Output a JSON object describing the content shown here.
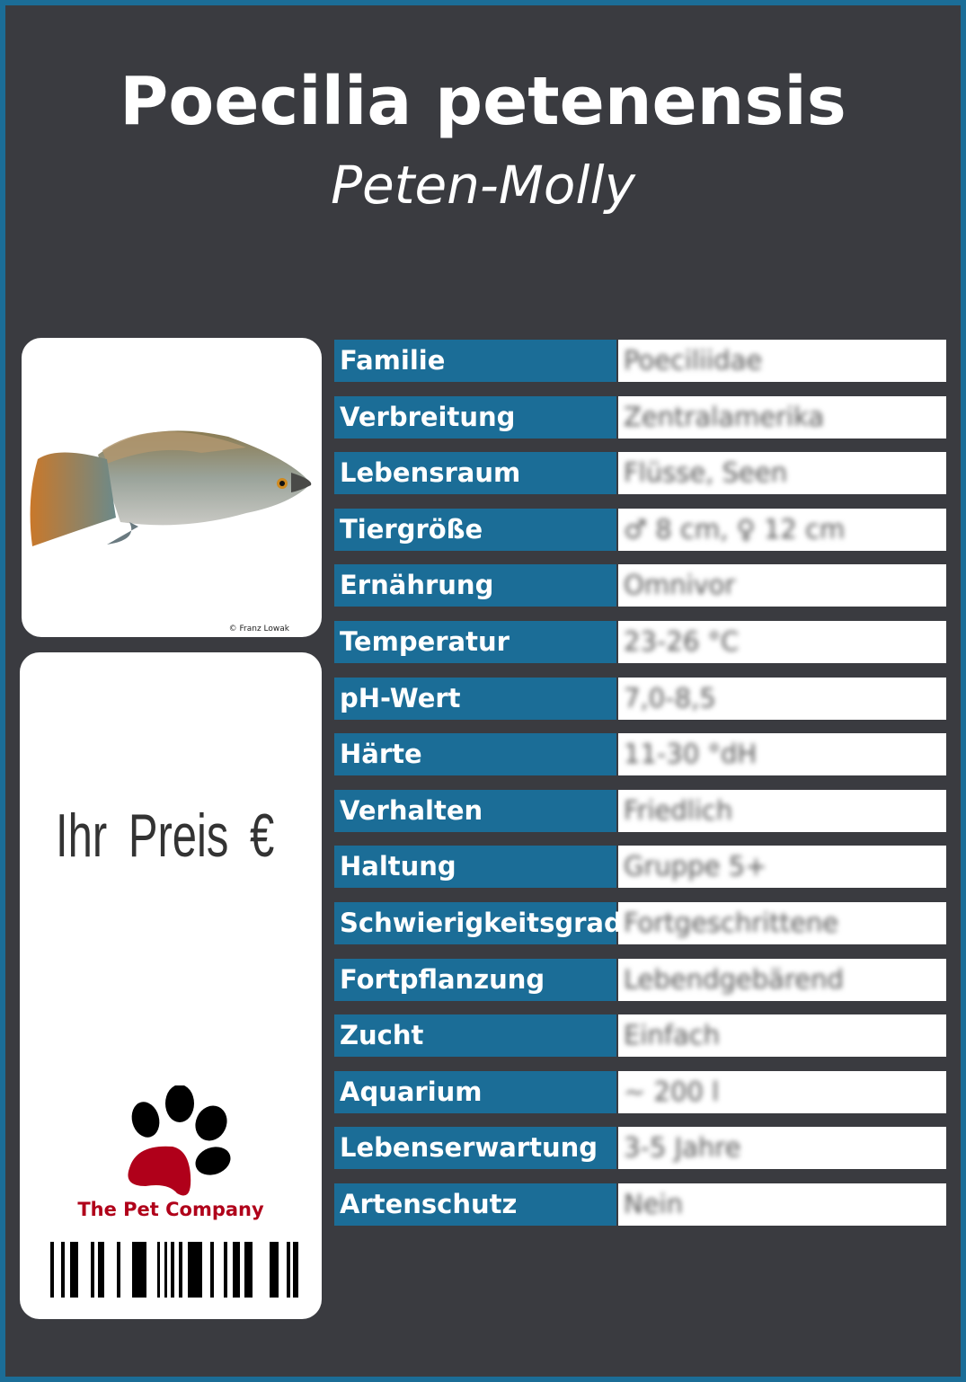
{
  "header": {
    "title": "Poecilia petenensis",
    "subtitle": "Peten-Molly"
  },
  "photo": {
    "credit": "© Franz Lowak",
    "alt": "fish-photo"
  },
  "price": {
    "label": "Ihr Preis €"
  },
  "brand": {
    "name": "The Pet Company",
    "logo": "paw-icon",
    "colors": {
      "paw": "#000000",
      "pad": "#b0001a"
    }
  },
  "colors": {
    "accent": "#1b6d97",
    "background": "#3a3b40"
  },
  "rows": [
    {
      "label": "Familie",
      "value": "Poeciliidae"
    },
    {
      "label": "Verbreitung",
      "value": "Zentralamerika"
    },
    {
      "label": "Lebensraum",
      "value": "Flüsse, Seen"
    },
    {
      "label": "Tiergröße",
      "value": "♂ 8 cm, ♀ 12 cm"
    },
    {
      "label": "Ernährung",
      "value": "Omnivor"
    },
    {
      "label": "Temperatur",
      "value": "23-26 °C"
    },
    {
      "label": "pH-Wert",
      "value": "7,0-8,5"
    },
    {
      "label": "Härte",
      "value": "11-30 °dH"
    },
    {
      "label": "Verhalten",
      "value": "Friedlich"
    },
    {
      "label": "Haltung",
      "value": "Gruppe 5+"
    },
    {
      "label": "Schwierigkeitsgrad",
      "value": "Fortgeschrittene"
    },
    {
      "label": "Fortpflanzung",
      "value": "Lebendgebärend"
    },
    {
      "label": "Zucht",
      "value": "Einfach"
    },
    {
      "label": "Aquarium",
      "value": "~ 200 l"
    },
    {
      "label": "Lebenserwartung",
      "value": "3-5 Jahre"
    },
    {
      "label": "Artenschutz",
      "value": "Nein"
    }
  ]
}
